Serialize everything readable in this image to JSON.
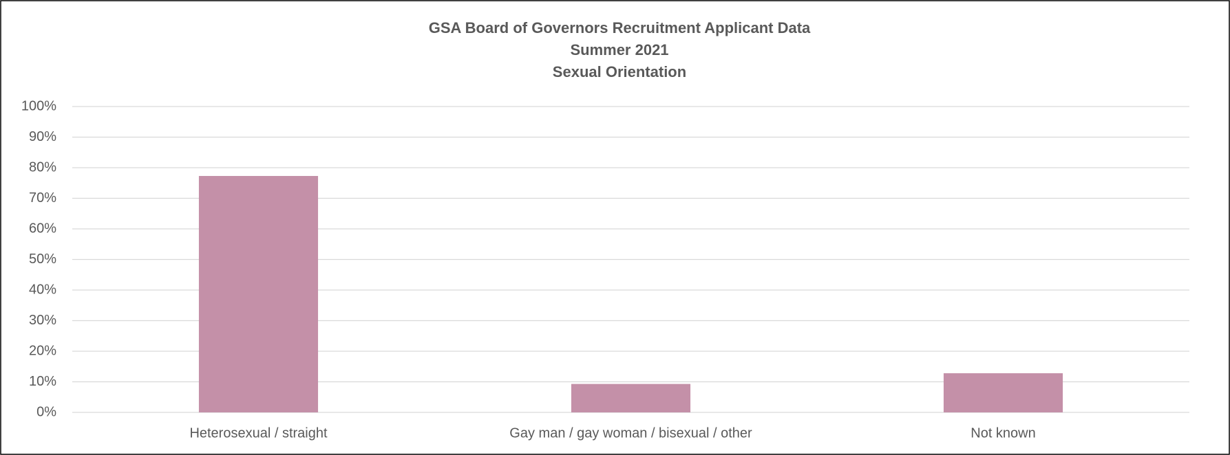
{
  "chart_data": {
    "type": "bar",
    "title_lines": [
      "GSA Board of Governors Recruitment Applicant Data",
      "Summer 2021",
      "Sexual Orientation"
    ],
    "categories": [
      "Heterosexual / straight",
      "Gay man / gay woman / bisexual / other",
      "Not known"
    ],
    "values": [
      77.3,
      9.3,
      12.8
    ],
    "color": "#c490a8",
    "ylim": [
      0,
      100
    ],
    "yticks": [
      {
        "value": 0,
        "label": "0%"
      },
      {
        "value": 10,
        "label": "10%"
      },
      {
        "value": 20,
        "label": "20%"
      },
      {
        "value": 30,
        "label": "30%"
      },
      {
        "value": 40,
        "label": "40%"
      },
      {
        "value": 50,
        "label": "50%"
      },
      {
        "value": 60,
        "label": "60%"
      },
      {
        "value": 70,
        "label": "70%"
      },
      {
        "value": 80,
        "label": "80%"
      },
      {
        "value": 90,
        "label": "90%"
      },
      {
        "value": 100,
        "label": "100%"
      }
    ],
    "grid": true
  }
}
